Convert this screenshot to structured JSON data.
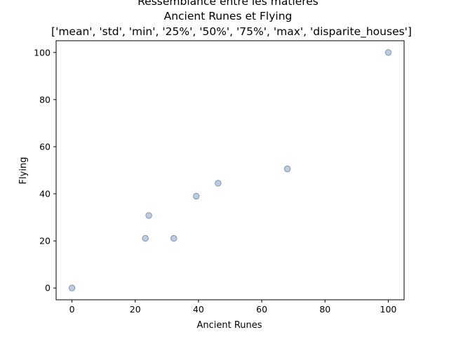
{
  "chart_data": {
    "type": "scatter",
    "title_lines": [
      "Ressemblance entre les matières",
      "Ancient Runes et Flying",
      "['mean', 'std', 'min', '25%', '50%', '75%', 'max', 'disparite_houses']"
    ],
    "xlabel": "Ancient Runes",
    "ylabel": "Flying",
    "xlim": [
      -5,
      105
    ],
    "ylim": [
      -5,
      105
    ],
    "xticks": [
      0,
      20,
      40,
      60,
      80,
      100
    ],
    "yticks": [
      0,
      20,
      40,
      60,
      80,
      100
    ],
    "grid": false,
    "series": [
      {
        "x": [
          0,
          23.2,
          24.3,
          32.2,
          39.3,
          46.2,
          68.1,
          100
        ],
        "y": [
          0,
          21.1,
          30.8,
          21.1,
          39.0,
          44.5,
          50.6,
          100
        ]
      }
    ],
    "colors": {
      "marker_fill": "#b0c4de",
      "marker_edge": "#7f95ad"
    }
  }
}
